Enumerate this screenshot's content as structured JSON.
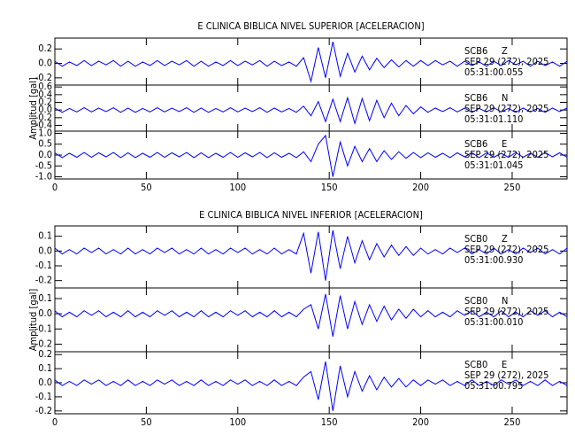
{
  "chart_data": [
    {
      "type": "line",
      "title": "E CLINICA BIBLICA NIVEL SUPERIOR [ACELERACION]",
      "ylabel": "Amplitud [gal]",
      "color": "#0000ff",
      "xlim": [
        0,
        280
      ],
      "xticks": [
        0,
        50,
        100,
        150,
        200,
        250
      ],
      "x": [
        0,
        4,
        8,
        12,
        16,
        20,
        24,
        28,
        32,
        36,
        40,
        44,
        48,
        52,
        56,
        60,
        64,
        68,
        72,
        76,
        80,
        84,
        88,
        92,
        96,
        100,
        104,
        108,
        112,
        116,
        120,
        124,
        128,
        132,
        136,
        140,
        144,
        148,
        152,
        156,
        160,
        164,
        168,
        172,
        176,
        180,
        184,
        188,
        192,
        196,
        200,
        204,
        208,
        212,
        216,
        220,
        224,
        228,
        232,
        236,
        240,
        244,
        248,
        252,
        256,
        260,
        264,
        268,
        272,
        276,
        280
      ],
      "panels": [
        {
          "station": "SCB6",
          "component": "Z",
          "date": "SEP 29 (272), 2025",
          "time": "05:31:00.055",
          "ylim": [
            -0.3,
            0.35
          ],
          "yticks": [
            -0.2,
            {
              "value": 0,
              "label": "0.0"
            },
            0.2
          ],
          "values": [
            0.03,
            -0.04,
            0.02,
            -0.03,
            0.04,
            -0.03,
            0.03,
            -0.02,
            0.04,
            -0.04,
            0.03,
            -0.04,
            0.02,
            -0.03,
            0.04,
            -0.03,
            0.03,
            -0.02,
            0.04,
            -0.04,
            0.03,
            -0.04,
            0.02,
            -0.03,
            0.04,
            -0.03,
            0.03,
            -0.02,
            0.04,
            -0.04,
            0.03,
            -0.03,
            0.02,
            -0.04,
            0.08,
            -0.25,
            0.22,
            -0.2,
            0.3,
            -0.18,
            0.14,
            -0.12,
            0.1,
            -0.09,
            0.07,
            -0.06,
            0.05,
            -0.05,
            0.04,
            -0.04,
            0.04,
            -0.03,
            0.04,
            -0.02,
            0.03,
            -0.04,
            0.03,
            -0.03,
            0.02,
            -0.04,
            0.03,
            -0.03,
            0.04,
            -0.02,
            0.03,
            -0.04,
            0.03,
            -0.03,
            0.02,
            -0.04,
            0.03
          ]
        },
        {
          "station": "SCB6",
          "component": "N",
          "date": "SEP 29 (272), 2025",
          "time": "05:31:01.110",
          "ylim": [
            -0.55,
            0.65
          ],
          "yticks": [
            -0.4,
            -0.2,
            {
              "value": 0,
              "label": "0.0"
            },
            0.2,
            0.4,
            0.6
          ],
          "values": [
            0.05,
            -0.06,
            0.04,
            -0.05,
            0.06,
            -0.05,
            0.05,
            -0.04,
            0.06,
            -0.06,
            0.05,
            -0.06,
            0.04,
            -0.05,
            0.06,
            -0.05,
            0.05,
            -0.04,
            0.06,
            -0.06,
            0.05,
            -0.06,
            0.04,
            -0.05,
            0.06,
            -0.05,
            0.05,
            -0.04,
            0.06,
            -0.06,
            0.05,
            -0.05,
            0.04,
            -0.06,
            0.1,
            -0.15,
            0.22,
            -0.3,
            0.28,
            -0.3,
            0.32,
            -0.35,
            0.3,
            -0.28,
            0.25,
            -0.2,
            0.18,
            -0.15,
            0.12,
            -0.1,
            0.08,
            -0.06,
            0.05,
            -0.04,
            0.06,
            -0.05,
            0.05,
            -0.06,
            0.04,
            -0.05,
            0.06,
            -0.05,
            0.04,
            -0.06,
            0.05,
            -0.05,
            0.04,
            -0.06,
            0.05,
            -0.04,
            0.05
          ]
        },
        {
          "station": "SCB6",
          "component": "E",
          "date": "SEP 29 (272), 2025",
          "time": "05:31:01.045",
          "ylim": [
            -1.1,
            1.1
          ],
          "yticks": [
            {
              "value": -1,
              "label": "-1.0"
            },
            -0.5,
            {
              "value": 0,
              "label": "0.0"
            },
            0.5,
            {
              "value": 1,
              "label": "1.0"
            }
          ],
          "values": [
            0.1,
            -0.12,
            0.08,
            -0.1,
            0.12,
            -0.1,
            0.1,
            -0.08,
            0.12,
            -0.12,
            0.1,
            -0.12,
            0.08,
            -0.1,
            0.12,
            -0.1,
            0.1,
            -0.08,
            0.12,
            -0.12,
            0.1,
            -0.12,
            0.08,
            -0.1,
            0.12,
            -0.1,
            0.1,
            -0.08,
            0.12,
            -0.12,
            0.1,
            -0.1,
            0.08,
            -0.12,
            0.15,
            -0.3,
            0.5,
            0.9,
            -1.0,
            0.6,
            -0.5,
            0.4,
            -0.3,
            0.3,
            -0.3,
            0.2,
            -0.2,
            0.15,
            -0.15,
            0.12,
            -0.12,
            0.1,
            -0.1,
            0.08,
            -0.12,
            0.1,
            -0.08,
            0.1,
            -0.12,
            0.1,
            -0.1,
            0.08,
            -0.1,
            0.12,
            -0.1,
            0.08,
            -0.1,
            0.12,
            -0.08,
            0.1,
            -0.1
          ]
        }
      ]
    },
    {
      "type": "line",
      "title": "E CLINICA BIBLICA NIVEL INFERIOR [ACELERACION]",
      "ylabel": "Amplitud [gal]",
      "color": "#0000ff",
      "xlim": [
        0,
        280
      ],
      "xticks": [
        0,
        50,
        100,
        150,
        200,
        250
      ],
      "x": [
        0,
        4,
        8,
        12,
        16,
        20,
        24,
        28,
        32,
        36,
        40,
        44,
        48,
        52,
        56,
        60,
        64,
        68,
        72,
        76,
        80,
        84,
        88,
        92,
        96,
        100,
        104,
        108,
        112,
        116,
        120,
        124,
        128,
        132,
        136,
        140,
        144,
        148,
        152,
        156,
        160,
        164,
        168,
        172,
        176,
        180,
        184,
        188,
        192,
        196,
        200,
        204,
        208,
        212,
        216,
        220,
        224,
        228,
        232,
        236,
        240,
        244,
        248,
        252,
        256,
        260,
        264,
        268,
        272,
        276,
        280
      ],
      "panels": [
        {
          "station": "SCB0",
          "component": "Z",
          "date": "SEP 29 (272), 2025",
          "time": "05:31:00.930",
          "ylim": [
            -0.25,
            0.17
          ],
          "yticks": [
            -0.2,
            -0.1,
            {
              "value": 0,
              "label": "0.0"
            },
            0.1
          ],
          "values": [
            0.02,
            -0.02,
            0.01,
            -0.02,
            0.02,
            -0.01,
            0.02,
            -0.02,
            0.01,
            -0.02,
            0.02,
            -0.02,
            0.01,
            -0.02,
            0.02,
            -0.01,
            0.02,
            -0.02,
            0.01,
            -0.02,
            0.02,
            -0.02,
            0.01,
            -0.02,
            0.02,
            -0.01,
            0.02,
            -0.02,
            0.01,
            -0.02,
            0.02,
            -0.02,
            0.01,
            -0.02,
            0.12,
            -0.15,
            0.13,
            -0.2,
            0.14,
            -0.12,
            0.1,
            -0.08,
            0.07,
            -0.06,
            0.05,
            -0.04,
            0.04,
            -0.03,
            0.03,
            -0.03,
            0.02,
            -0.02,
            0.01,
            -0.02,
            0.02,
            -0.01,
            0.02,
            -0.02,
            0.01,
            -0.02,
            0.02,
            -0.02,
            0.01,
            -0.02,
            0.02,
            -0.01,
            0.02,
            -0.02,
            0.01,
            -0.02,
            0.02
          ]
        },
        {
          "station": "SCB0",
          "component": "N",
          "date": "SEP 29 (272), 2025",
          "time": "05:31:00.010",
          "ylim": [
            -0.25,
            0.17
          ],
          "yticks": [
            -0.2,
            -0.1,
            {
              "value": 0,
              "label": "0.0"
            },
            0.1
          ],
          "values": [
            0.02,
            -0.02,
            0.01,
            -0.02,
            0.02,
            -0.01,
            0.02,
            -0.02,
            0.01,
            -0.02,
            0.02,
            -0.02,
            0.01,
            -0.02,
            0.02,
            -0.01,
            0.02,
            -0.02,
            0.01,
            -0.02,
            0.02,
            -0.02,
            0.01,
            -0.02,
            0.02,
            -0.01,
            0.02,
            -0.02,
            0.01,
            -0.02,
            0.02,
            -0.02,
            0.01,
            -0.02,
            0.03,
            0.06,
            -0.1,
            0.13,
            -0.15,
            0.12,
            -0.1,
            0.08,
            -0.07,
            0.06,
            -0.05,
            0.05,
            -0.04,
            0.03,
            -0.03,
            0.03,
            -0.02,
            0.02,
            -0.02,
            0.01,
            -0.02,
            0.02,
            -0.01,
            0.02,
            -0.02,
            0.01,
            -0.02,
            0.02,
            -0.02,
            0.01,
            -0.02,
            0.02,
            -0.01,
            0.02,
            -0.02,
            0.01,
            -0.02
          ]
        },
        {
          "station": "SCB0",
          "component": "E",
          "date": "SEP 29 (272), 2025",
          "time": "05:31:00.795",
          "ylim": [
            -0.22,
            0.22
          ],
          "yticks": [
            -0.2,
            -0.1,
            {
              "value": 0,
              "label": "0.0"
            },
            0.1,
            0.2
          ],
          "values": [
            0.02,
            -0.02,
            0.01,
            -0.02,
            0.02,
            -0.01,
            0.02,
            -0.02,
            0.01,
            -0.02,
            0.02,
            -0.02,
            0.01,
            -0.02,
            0.02,
            -0.01,
            0.02,
            -0.02,
            0.01,
            -0.02,
            0.02,
            -0.02,
            0.01,
            -0.02,
            0.02,
            -0.01,
            0.02,
            -0.02,
            0.01,
            -0.02,
            0.02,
            -0.02,
            0.01,
            -0.02,
            0.04,
            0.08,
            -0.12,
            0.15,
            -0.2,
            0.12,
            -0.1,
            0.08,
            -0.06,
            0.05,
            -0.05,
            0.04,
            -0.03,
            0.03,
            -0.03,
            0.02,
            -0.02,
            0.02,
            -0.01,
            0.02,
            -0.02,
            0.01,
            -0.02,
            0.02,
            -0.02,
            0.01,
            -0.02,
            0.02,
            -0.01,
            0.02,
            -0.02,
            0.01,
            -0.02,
            0.02,
            -0.02,
            0.01,
            -0.02
          ]
        }
      ]
    }
  ]
}
